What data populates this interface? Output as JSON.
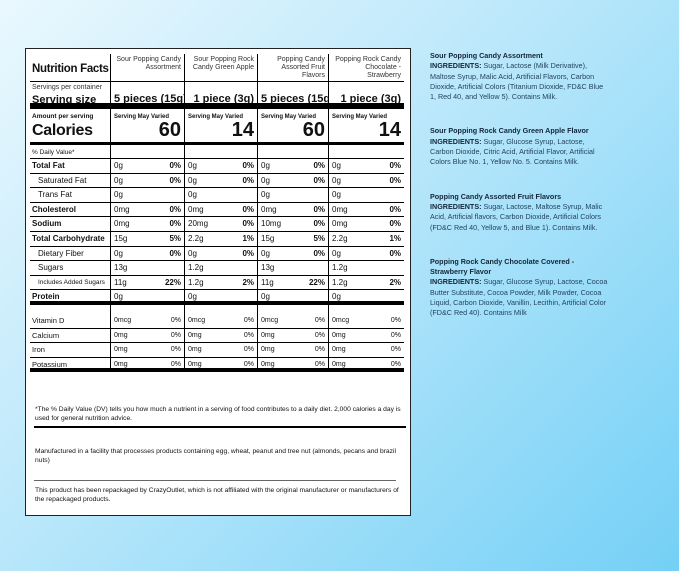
{
  "label": {
    "title": "Nutrition Facts",
    "servings_per_container": "Servings per container",
    "serving_size": "Serving size",
    "amount_per_serving": "Amount per serving",
    "calories": "Calories",
    "daily_value_header": "% Daily Value*",
    "products": [
      {
        "name": "Sour Popping Candy Assortment",
        "serving": "5 pieces (15g)",
        "varied": "Serving May Varied",
        "calories": "60"
      },
      {
        "name": "Sour Popping Rock Candy Green Apple",
        "serving": "1 piece (3g)",
        "varied": "Serving May Varied",
        "calories": "14"
      },
      {
        "name": "Popping Candy Assorted Fruit Flavors",
        "serving": "5 pieces (15g)",
        "varied": "Serving May Varied",
        "calories": "60"
      },
      {
        "name": "Popping Rock Candy Chocolate - Strawberry",
        "serving": "1 piece (3g)",
        "varied": "Serving May Varied",
        "calories": "14"
      }
    ],
    "nutrients": [
      {
        "label": "Total Fat",
        "style": "b",
        "values": [
          [
            "0g",
            "0%"
          ],
          [
            "0g",
            "0%"
          ],
          [
            "0g",
            "0%"
          ],
          [
            "0g",
            "0%"
          ]
        ]
      },
      {
        "label": "Saturated Fat",
        "style": "ind",
        "values": [
          [
            "0g",
            "0%"
          ],
          [
            "0g",
            "0%"
          ],
          [
            "0g",
            "0%"
          ],
          [
            "0g",
            "0%"
          ]
        ]
      },
      {
        "label": "Trans Fat",
        "style": "ind",
        "values": [
          [
            "0g",
            ""
          ],
          [
            "0g",
            ""
          ],
          [
            "0g",
            ""
          ],
          [
            "0g",
            ""
          ]
        ]
      },
      {
        "label": "Cholesterol",
        "style": "b",
        "values": [
          [
            "0mg",
            "0%"
          ],
          [
            "0mg",
            "0%"
          ],
          [
            "0mg",
            "0%"
          ],
          [
            "0mg",
            "0%"
          ]
        ]
      },
      {
        "label": "Sodium",
        "style": "b",
        "values": [
          [
            "0mg",
            "0%"
          ],
          [
            "20mg",
            "0%"
          ],
          [
            "10mg",
            "0%"
          ],
          [
            "0mg",
            "0%"
          ]
        ]
      },
      {
        "label": "Total Carbohydrate",
        "style": "b",
        "values": [
          [
            "15g",
            "5%"
          ],
          [
            "2.2g",
            "1%"
          ],
          [
            "15g",
            "5%"
          ],
          [
            "2.2g",
            "1%"
          ]
        ]
      },
      {
        "label": "Dietary Fiber",
        "style": "ind",
        "values": [
          [
            "0g",
            "0%"
          ],
          [
            "0g",
            "0%"
          ],
          [
            "0g",
            "0%"
          ],
          [
            "0g",
            "0%"
          ]
        ]
      },
      {
        "label": "Sugars",
        "style": "ind",
        "values": [
          [
            "13g",
            ""
          ],
          [
            "1.2g",
            ""
          ],
          [
            "13g",
            ""
          ],
          [
            "1.2g",
            ""
          ]
        ]
      },
      {
        "label": "Includes Added Sugars",
        "style": "ind2",
        "values": [
          [
            "11g",
            "22%"
          ],
          [
            "1.2g",
            "2%"
          ],
          [
            "11g",
            "22%"
          ],
          [
            "1.2g",
            "2%"
          ]
        ]
      },
      {
        "label": "Protein",
        "style": "b",
        "thick": true,
        "values": [
          [
            "0g",
            ""
          ],
          [
            "0g",
            ""
          ],
          [
            "0g",
            ""
          ],
          [
            "0g",
            ""
          ]
        ]
      }
    ],
    "minerals": [
      {
        "label": "Vitamin D",
        "values": [
          [
            "0mcg",
            "0%"
          ],
          [
            "0mcg",
            "0%"
          ],
          [
            "0mcg",
            "0%"
          ],
          [
            "0mcg",
            "0%"
          ]
        ]
      },
      {
        "label": "Calcium",
        "values": [
          [
            "0mg",
            "0%"
          ],
          [
            "0mg",
            "0%"
          ],
          [
            "0mg",
            "0%"
          ],
          [
            "0mg",
            "0%"
          ]
        ]
      },
      {
        "label": "Iron",
        "values": [
          [
            "0mg",
            "0%"
          ],
          [
            "0mg",
            "0%"
          ],
          [
            "0mg",
            "0%"
          ],
          [
            "0mg",
            "0%"
          ]
        ]
      },
      {
        "label": "Potassium",
        "values": [
          [
            "0mg",
            "0%"
          ],
          [
            "0mg",
            "0%"
          ],
          [
            "0mg",
            "0%"
          ],
          [
            "0mg",
            "0%"
          ]
        ]
      }
    ],
    "footnote": "*The % Daily Value (DV) tells you how much a nutrient in a serving of food contributes to a daily diet. 2,000 calories a day is used for general nutrition advice.",
    "facility": "Manufactured in a facility that processes products containing egg, wheat, peanut and tree nut (almonds, pecans and brazil nuts)",
    "repack": "This product has been repackaged by CrazyOutlet, which is not affiliated with the original manufacturer or manufacturers of the repackaged products."
  },
  "ingredients": [
    {
      "heading": "Sour Popping Candy Assortment",
      "label": "INGREDIENTS:",
      "text": "Sugar, Lactose (Milk Derivative), Maltose Syrup, Malic Acid, Artificial Flavors, Carbon Dioxide, Artificial Colors (Titanium Dioxide, FD&C Blue 1, Red 40, and Yellow 5). Contains Milk."
    },
    {
      "heading": "Sour Popping Rock Candy Green Apple Flavor",
      "label": "INGREDIENTS:",
      "text": "Sugar, Glucose Syrup, Lactose, Carbon Dioxide, Citric Acid, Artificial Flavor, Artificial Colors Blue No. 1, Yellow No. 5. Contains Milk."
    },
    {
      "heading": "Popping Candy Assorted Fruit Flavors",
      "label": "INGREDIENTS:",
      "text": "Sugar, Lactose, Maltose Syrup, Malic Acid, Artificial flavors, Carbon Dioxide, Artificial Colors (FD&C Red 40, Yellow 5, and Blue 1). Contains Milk."
    },
    {
      "heading": "Popping Rock Candy Chocolate Covered - Strawberry Flavor",
      "label": "INGREDIENTS:",
      "text": "Sugar, Glucose Syrup, Lactose, Cocoa Butter Substitute, Cocoa Powder, Milk Powder, Cocoa Liquid, Carbon Dioxide, Vanillin, Lecithin, Artificial Color (FD&C Red 40). Contains Milk"
    }
  ]
}
